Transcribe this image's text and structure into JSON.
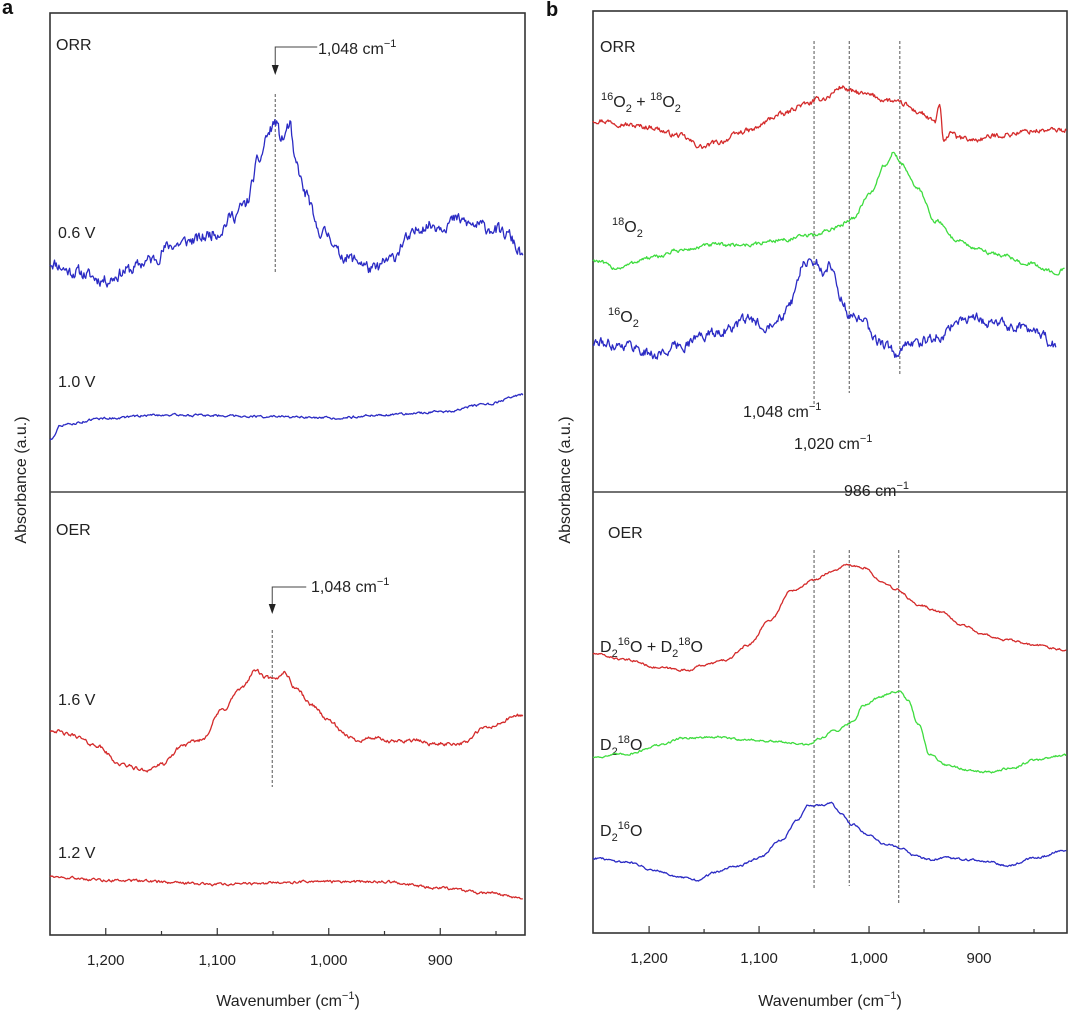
{
  "figure": {
    "panels": [
      "a",
      "b"
    ]
  },
  "chart_data": [
    {
      "type": "line",
      "panel_label": "a",
      "title": "",
      "xlabel": "Wavenumber (cm⁻¹)",
      "ylabel": "Absorbance (a.u.)",
      "xlim": [
        1250,
        824
      ],
      "x_reversed": true,
      "xticks": [
        1200,
        1100,
        1000,
        900
      ],
      "xtick_labels": [
        "1,200",
        "1,100",
        "1,000",
        "900"
      ],
      "minor_xticks": [
        1150,
        1050,
        950,
        850
      ],
      "grid": false,
      "y_units_note": "stacked offsets, arbitrary units per section (0-100)",
      "sections": [
        {
          "name": "ORR",
          "series": [
            {
              "name": "0.6 V",
              "color": "#2b2bc4",
              "noise": 2.2,
              "x": [
                1250,
                1230,
                1200,
                1180,
                1160,
                1140,
                1120,
                1100,
                1085,
                1075,
                1062,
                1055,
                1048,
                1042,
                1035,
                1030,
                1020,
                1010,
                1000,
                990,
                975,
                960,
                945,
                930,
                915,
                900,
                885,
                870,
                855,
                840,
                826
              ],
              "y": [
                48,
                46,
                44.3,
                46.3,
                48.4,
                51.6,
                52.6,
                54.3,
                57.8,
                59.9,
                69.3,
                74.5,
                77.2,
                73.5,
                76.6,
                68.3,
                62,
                54.7,
                53.7,
                49.5,
                48.4,
                46.3,
                48.4,
                52.6,
                55.7,
                55.7,
                56.8,
                55.7,
                55.1,
                53.7,
                49.5
              ]
            },
            {
              "name": "1.0 V",
              "color": "#2b2bc4",
              "noise": 0.4,
              "x": [
                1250,
                1240,
                1200,
                1150,
                1100,
                1050,
                1000,
                950,
                900,
                860,
                826
              ],
              "y": [
                10.9,
                14,
                15.4,
                16.1,
                16,
                15.7,
                15.4,
                16.1,
                16.7,
                18.2,
                20.3
              ]
            }
          ],
          "annotations": [
            {
              "label": "1,048 cm⁻¹",
              "at": 1048,
              "arrow": true
            }
          ]
        },
        {
          "name": "OER",
          "series": [
            {
              "name": "1.6 V",
              "color": "#d42b2b",
              "noise": 0.7,
              "x": [
                1250,
                1230,
                1210,
                1185,
                1165,
                1150,
                1130,
                1115,
                1095,
                1080,
                1065,
                1058,
                1048,
                1040,
                1030,
                1015,
                1000,
                985,
                975,
                960,
                945,
                925,
                905,
                880,
                860,
                826
              ],
              "y": [
                46.3,
                45.1,
                42.9,
                38.4,
                37.2,
                38.4,
                42.9,
                44,
                50.8,
                55.3,
                59.8,
                58.2,
                57.6,
                59.4,
                55.8,
                51.9,
                48.5,
                45.1,
                44,
                44.5,
                43.6,
                44,
                43.1,
                43.3,
                46.7,
                49.7
              ]
            },
            {
              "name": "1.2 V",
              "color": "#d42b2b",
              "noise": 0.5,
              "x": [
                1250,
                1200,
                1100,
                1000,
                950,
                900,
                860,
                826
              ],
              "y": [
                13.3,
                12.4,
                11.5,
                12,
                12,
                10.6,
                9.5,
                8.4
              ]
            }
          ],
          "annotations": [
            {
              "label": "1,048 cm⁻¹",
              "at": 1048,
              "arrow": true
            }
          ]
        }
      ]
    },
    {
      "type": "line",
      "panel_label": "b",
      "title": "",
      "xlabel": "Wavenumber (cm⁻¹)",
      "ylabel": "Absorbance (a.u.)",
      "xlim": [
        1251,
        820
      ],
      "x_reversed": true,
      "xticks": [
        1200,
        1100,
        1000,
        900
      ],
      "xtick_labels": [
        "1,200",
        "1,100",
        "1,000",
        "900"
      ],
      "minor_xticks": [
        1150,
        1050,
        950,
        850
      ],
      "grid": false,
      "y_units_note": "stacked offsets, arbitrary units per section (0-100)",
      "sections": [
        {
          "name": "ORR",
          "series": [
            {
              "name": "16O2 + 18O2",
              "label_parts": [
                [
                  "sup",
                  "16"
                ],
                [
                  "t",
                  "O"
                ],
                [
                  "sub",
                  "2"
                ],
                [
                  "t",
                  " + "
                ],
                [
                  "sup",
                  "18"
                ],
                [
                  "t",
                  "O"
                ],
                [
                  "sub",
                  "2"
                ]
              ],
              "color": "#d42b2b",
              "noise": 0.9,
              "x": [
                1251,
                1200,
                1175,
                1150,
                1140,
                1110,
                1080,
                1060,
                1040,
                1025,
                1015,
                1000,
                985,
                970,
                955,
                940,
                936,
                932,
                925,
                920,
                905,
                880,
                850,
                820
              ],
              "y": [
                77.3,
                75.9,
                74.2,
                71.7,
                72.6,
                75.1,
                78.4,
                80.5,
                81.9,
                84.2,
                83.2,
                82.5,
                81.5,
                80.7,
                79,
                76.9,
                80.5,
                72.5,
                75.1,
                73.6,
                73.2,
                74.2,
                75.1,
                75.3
              ]
            },
            {
              "name": "18O2",
              "label_parts": [
                [
                  "sup",
                  "18"
                ],
                [
                  "t",
                  "O"
                ],
                [
                  "sub",
                  "2"
                ]
              ],
              "color": "#3fdc3f",
              "noise": 0.7,
              "x": [
                1251,
                1230,
                1200,
                1170,
                1140,
                1110,
                1080,
                1050,
                1030,
                1015,
                1000,
                985,
                978,
                970,
                955,
                940,
                920,
                900,
                880,
                860,
                830,
                822
              ],
              "y": [
                48.2,
                46.6,
                48.6,
                50.3,
                51.4,
                51.4,
                52.4,
                53.4,
                54.9,
                57,
                61.7,
                68,
                70.5,
                68,
                62.8,
                56.5,
                52.4,
                50.3,
                49.3,
                47.8,
                45.7,
                46.2
              ]
            },
            {
              "name": "16O2",
              "label_parts": [
                [
                  "sup",
                  "16"
                ],
                [
                  "t",
                  "O"
                ],
                [
                  "sub",
                  "2"
                ]
              ],
              "color": "#2b2bc4",
              "noise": 1.8,
              "x": [
                1251,
                1220,
                1195,
                1170,
                1150,
                1130,
                1110,
                1095,
                1080,
                1070,
                1060,
                1048,
                1040,
                1035,
                1025,
                1018,
                1005,
                995,
                985,
                975,
                965,
                950,
                935,
                920,
                905,
                890,
                870,
                850,
                830
              ],
              "y": [
                31,
                30.6,
                28.5,
                30.6,
                32.6,
                33.7,
                35.8,
                34.7,
                36.8,
                39.9,
                47.2,
                47.8,
                45.1,
                47.6,
                39.9,
                36.8,
                35.3,
                31.6,
                30.6,
                28.5,
                30.6,
                31.2,
                32.6,
                35.3,
                36.2,
                35.3,
                34.5,
                33.7,
                30.6
              ]
            }
          ],
          "marker_lines": [
            1050,
            1018,
            972
          ],
          "annotations": [
            {
              "label": "1,048 cm⁻¹",
              "at": 1048
            },
            {
              "label": "1,020 cm⁻¹",
              "at": 1020
            },
            {
              "label": "986 cm⁻¹",
              "at": 986
            }
          ]
        },
        {
          "name": "OER",
          "series": [
            {
              "name": "D2 16O + D2 18O",
              "label_parts": [
                [
                  "t",
                  "D"
                ],
                [
                  "sub",
                  "2"
                ],
                [
                  "sup",
                  "16"
                ],
                [
                  "t",
                  "O + D"
                ],
                [
                  "sub",
                  "2"
                ],
                [
                  "sup",
                  "18"
                ],
                [
                  "t",
                  "O"
                ]
              ],
              "color": "#d42b2b",
              "noise": 0.4,
              "x": [
                1251,
                1220,
                1190,
                1165,
                1150,
                1130,
                1110,
                1090,
                1070,
                1050,
                1035,
                1020,
                1005,
                990,
                975,
                955,
                935,
                915,
                895,
                875,
                850,
                820
              ],
              "y": [
                63.3,
                61.9,
                60.1,
                59.6,
                60.8,
                61.9,
                65.3,
                71,
                77.8,
                80,
                81.9,
                83.4,
                82.8,
                80,
                77.8,
                74.4,
                72.8,
                69.8,
                67.6,
                66.4,
                65.3,
                64.2
              ]
            },
            {
              "name": "D2 18O",
              "label_parts": [
                [
                  "t",
                  "D"
                ],
                [
                  "sub",
                  "2"
                ],
                [
                  "sup",
                  "18"
                ],
                [
                  "t",
                  "O"
                ]
              ],
              "color": "#3fdc3f",
              "noise": 0.4,
              "x": [
                1251,
                1220,
                1190,
                1170,
                1140,
                1110,
                1080,
                1055,
                1045,
                1030,
                1015,
                1005,
                990,
                978,
                972,
                965,
                955,
                945,
                930,
                910,
                890,
                870,
                850,
                820
              ],
              "y": [
                39.9,
                40.6,
                42.6,
                44.2,
                44.4,
                43.8,
                43.3,
                42.6,
                44.2,
                46,
                47.8,
                51.7,
                53.5,
                54.6,
                55.1,
                52.8,
                47.2,
                40.4,
                38.1,
                37,
                36.5,
                37.4,
                39.2,
                40.4
              ]
            },
            {
              "name": "D2 16O",
              "label_parts": [
                [
                  "t",
                  "D"
                ],
                [
                  "sub",
                  "2"
                ],
                [
                  "sup",
                  "16"
                ],
                [
                  "t",
                  "O"
                ]
              ],
              "color": "#2b2bc4",
              "noise": 0.4,
              "x": [
                1251,
                1220,
                1195,
                1170,
                1155,
                1140,
                1120,
                1100,
                1080,
                1065,
                1055,
                1045,
                1035,
                1025,
                1015,
                1000,
                985,
                970,
                960,
                945,
                930,
                910,
                890,
                875,
                850,
                820
              ],
              "y": [
                17,
                16.1,
                14.3,
                12.5,
                12,
                13.8,
                15.2,
                17,
                21.1,
                25.6,
                29,
                29,
                29.5,
                26.8,
                24.5,
                22.2,
                20,
                19.3,
                17.7,
                16.6,
                17,
                16.6,
                16.1,
                15.2,
                17,
                18.8
              ]
            }
          ],
          "marker_lines": [
            1050,
            1018,
            973
          ]
        }
      ]
    }
  ],
  "text": {
    "panel_a": "a",
    "panel_b": "b",
    "orr": "ORR",
    "oer": "OER",
    "ylabel": "Absorbance (a.u.)",
    "xlabel_main": "Wavenumber (cm",
    "xlabel_sup": "−1",
    "xlabel_end": ")",
    "annot_1048_main": "1,048 cm",
    "annot_1020_main": "1,020 cm",
    "annot_986_main": "986 cm",
    "annot_sup": "−1",
    "a_labels": [
      "0.6 V",
      "1.0 V",
      "1.6 V",
      "1.2 V"
    ],
    "ticks": [
      "1,200",
      "1,100",
      "1,000",
      "900"
    ]
  }
}
